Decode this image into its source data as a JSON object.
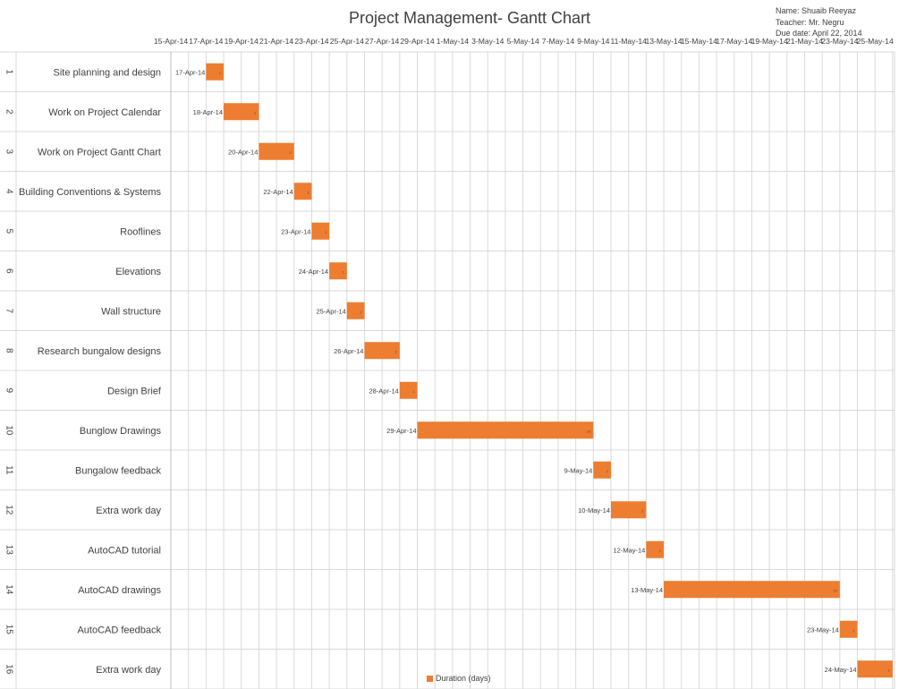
{
  "chart_data": {
    "type": "bar",
    "orientation": "horizontal-gantt",
    "title": "Project Management- Gantt Chart",
    "info": {
      "name": "Name: Shuaib Reeyaz",
      "teacher": "Teacher: Mr. Negru",
      "due": "Due date: April 22, 2014"
    },
    "x_ticks": [
      "15-Apr-14",
      "17-Apr-14",
      "19-Apr-14",
      "21-Apr-14",
      "23-Apr-14",
      "25-Apr-14",
      "27-Apr-14",
      "29-Apr-14",
      "1-May-14",
      "3-May-14",
      "5-May-14",
      "7-May-14",
      "9-May-14",
      "11-May-14",
      "13-May-14",
      "15-May-14",
      "17-May-14",
      "19-May-14",
      "21-May-14",
      "23-May-14",
      "25-May-14"
    ],
    "xlim": [
      "15-Apr-14",
      "27-May-14"
    ],
    "grid": true,
    "legend": {
      "label": "Duration (days)",
      "position": "bottom"
    },
    "tasks": [
      {
        "id": "1",
        "label": "Site planning and design",
        "start": "2014-04-17",
        "start_label": "17-Apr-14",
        "duration": 1
      },
      {
        "id": "2",
        "label": "Work on Project Calendar",
        "start": "2014-04-18",
        "start_label": "18-Apr-14",
        "duration": 2
      },
      {
        "id": "3",
        "label": "Work on Project Gantt Chart",
        "start": "2014-04-20",
        "start_label": "20-Apr-14",
        "duration": 2
      },
      {
        "id": "4",
        "label": "Building Conventions & Systems",
        "start": "2014-04-22",
        "start_label": "22-Apr-14",
        "duration": 1
      },
      {
        "id": "5",
        "label": "Rooflines",
        "start": "2014-04-23",
        "start_label": "23-Apr-14",
        "duration": 1
      },
      {
        "id": "6",
        "label": "Elevations",
        "start": "2014-04-24",
        "start_label": "24-Apr-14",
        "duration": 1
      },
      {
        "id": "7",
        "label": "Wall structure",
        "start": "2014-04-25",
        "start_label": "25-Apr-14",
        "duration": 1
      },
      {
        "id": "8",
        "label": "Research bungalow designs",
        "start": "2014-04-26",
        "start_label": "26-Apr-14",
        "duration": 2
      },
      {
        "id": "9",
        "label": "Design Brief",
        "start": "2014-04-28",
        "start_label": "28-Apr-14",
        "duration": 1
      },
      {
        "id": "10",
        "label": "Bunglow Drawings",
        "start": "2014-04-29",
        "start_label": "29-Apr-14",
        "duration": 10
      },
      {
        "id": "11",
        "label": "Bungalow feedback",
        "start": "2014-05-09",
        "start_label": "9-May-14",
        "duration": 1
      },
      {
        "id": "12",
        "label": "Extra work day",
        "start": "2014-05-10",
        "start_label": "10-May-14",
        "duration": 2
      },
      {
        "id": "13",
        "label": "AutoCAD tutorial",
        "start": "2014-05-12",
        "start_label": "12-May-14",
        "duration": 1
      },
      {
        "id": "14",
        "label": "AutoCAD drawings",
        "start": "2014-05-13",
        "start_label": "13-May-14",
        "duration": 10
      },
      {
        "id": "15",
        "label": "AutoCAD feedback",
        "start": "2014-05-23",
        "start_label": "23-May-14",
        "duration": 1
      },
      {
        "id": "16",
        "label": "Extra work day",
        "start": "2014-05-24",
        "start_label": "24-May-14",
        "duration": 2
      }
    ],
    "colors": {
      "bar": "#ed7d31",
      "grid": "#d9d9d9",
      "text": "#404040"
    }
  }
}
